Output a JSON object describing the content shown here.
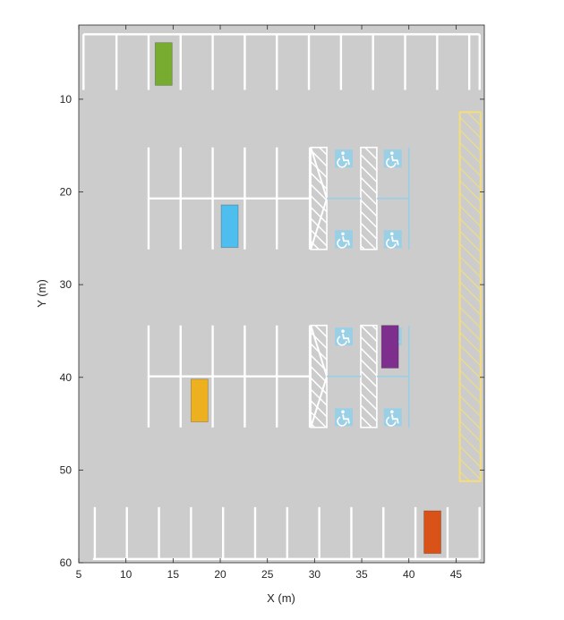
{
  "chart_data": {
    "type": "scatter",
    "title": "",
    "xlabel": "X (m)",
    "ylabel": "Y (m)",
    "xlim": [
      5,
      48
    ],
    "ylim": [
      60,
      2
    ],
    "y_reversed": true,
    "x_ticks": [
      5,
      10,
      15,
      20,
      25,
      30,
      35,
      40,
      45
    ],
    "y_ticks": [
      10,
      20,
      30,
      40,
      50,
      60
    ],
    "grid": false,
    "legend": "none",
    "ground_color": "#cccccc",
    "parking_line_color": "#ffffff",
    "accessible_color": "#9ad0e6",
    "no_parking_zone_color": "#f5de7a",
    "vehicles": [
      {
        "name": "green-vehicle",
        "x": 14,
        "y": 6.2,
        "width": 1.8,
        "length": 4.6,
        "color": "#77ac30"
      },
      {
        "name": "blue-vehicle",
        "x": 21,
        "y": 23.7,
        "width": 1.8,
        "length": 4.6,
        "color": "#4dbeee"
      },
      {
        "name": "purple-vehicle",
        "x": 38,
        "y": 36.7,
        "width": 1.8,
        "length": 4.6,
        "color": "#7e2f8e"
      },
      {
        "name": "yellow-vehicle",
        "x": 17.8,
        "y": 42.5,
        "width": 1.8,
        "length": 4.6,
        "color": "#edb120"
      },
      {
        "name": "orange-vehicle",
        "x": 42.5,
        "y": 56.7,
        "width": 1.8,
        "length": 4.6,
        "color": "#d95319"
      }
    ]
  }
}
